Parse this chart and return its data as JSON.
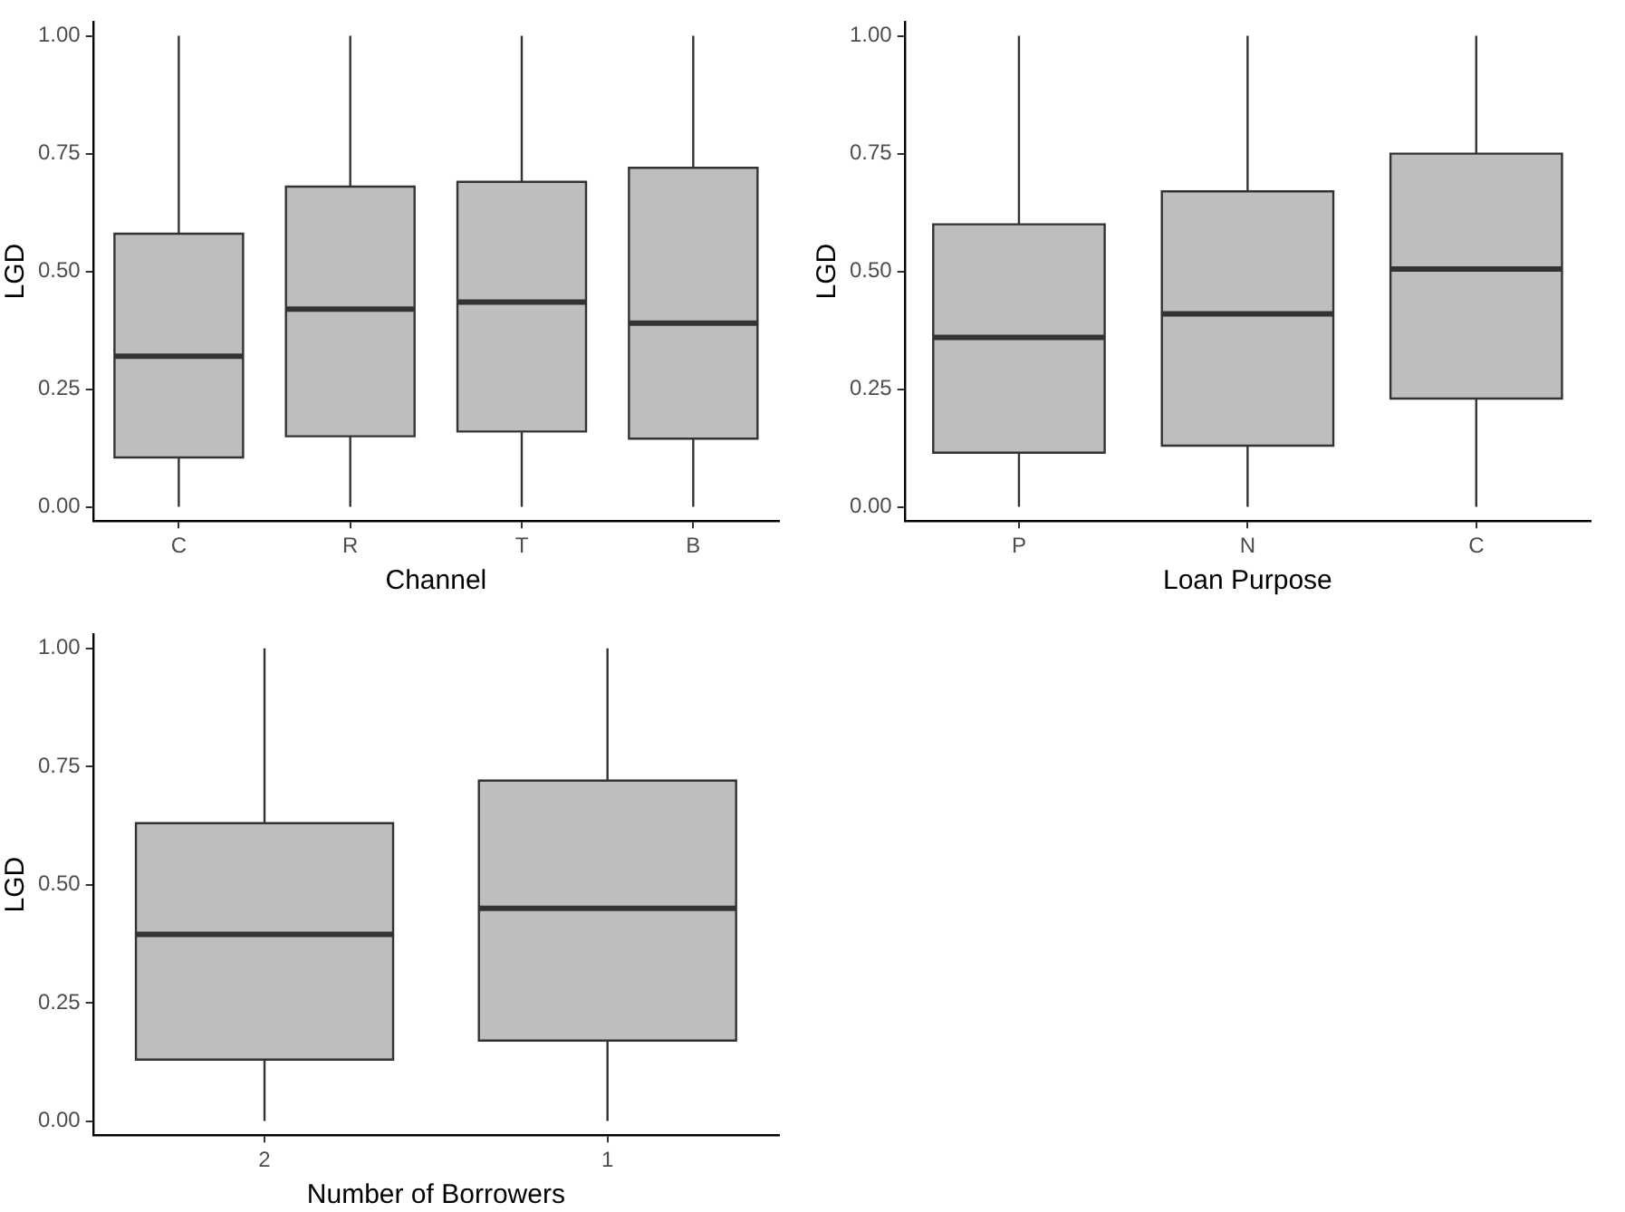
{
  "chart_data": [
    {
      "type": "box",
      "categories": [
        "C",
        "R",
        "T",
        "B"
      ],
      "xlabel": "Channel",
      "ylabel": "LGD",
      "color": "#bebebe",
      "ylim": [
        -0.03,
        1.03
      ],
      "yticks": [
        {
          "value": 0,
          "label": "0.00"
        },
        {
          "value": 0.25,
          "label": "0.25"
        },
        {
          "value": 0.5,
          "label": "0.50"
        },
        {
          "value": 0.75,
          "label": "0.75"
        },
        {
          "value": 1,
          "label": "1.00"
        }
      ],
      "boxes": [
        {
          "low": 0,
          "q1": 0.105,
          "median": 0.32,
          "q3": 0.58,
          "high": 1
        },
        {
          "low": 0,
          "q1": 0.15,
          "median": 0.42,
          "q3": 0.68,
          "high": 1
        },
        {
          "low": 0,
          "q1": 0.16,
          "median": 0.435,
          "q3": 0.69,
          "high": 1
        },
        {
          "low": 0,
          "q1": 0.145,
          "median": 0.39,
          "q3": 0.72,
          "high": 1
        }
      ]
    },
    {
      "type": "box",
      "categories": [
        "P",
        "N",
        "C"
      ],
      "xlabel": "Loan Purpose",
      "ylabel": "LGD",
      "color": "#bebebe",
      "ylim": [
        -0.03,
        1.03
      ],
      "yticks": [
        {
          "value": 0,
          "label": "0.00"
        },
        {
          "value": 0.25,
          "label": "0.25"
        },
        {
          "value": 0.5,
          "label": "0.50"
        },
        {
          "value": 0.75,
          "label": "0.75"
        },
        {
          "value": 1,
          "label": "1.00"
        }
      ],
      "boxes": [
        {
          "low": 0,
          "q1": 0.115,
          "median": 0.36,
          "q3": 0.6,
          "high": 1
        },
        {
          "low": 0,
          "q1": 0.13,
          "median": 0.41,
          "q3": 0.67,
          "high": 1
        },
        {
          "low": 0,
          "q1": 0.23,
          "median": 0.505,
          "q3": 0.75,
          "high": 1
        }
      ]
    },
    {
      "type": "box",
      "categories": [
        "2",
        "1"
      ],
      "xlabel": "Number of Borrowers",
      "ylabel": "LGD",
      "color": "#bebebe",
      "ylim": [
        -0.03,
        1.03
      ],
      "yticks": [
        {
          "value": 0,
          "label": "0.00"
        },
        {
          "value": 0.25,
          "label": "0.25"
        },
        {
          "value": 0.5,
          "label": "0.50"
        },
        {
          "value": 0.75,
          "label": "0.75"
        },
        {
          "value": 1,
          "label": "1.00"
        }
      ],
      "boxes": [
        {
          "low": 0,
          "q1": 0.13,
          "median": 0.395,
          "q3": 0.63,
          "high": 1
        },
        {
          "low": 0,
          "q1": 0.17,
          "median": 0.45,
          "q3": 0.72,
          "high": 1
        }
      ]
    }
  ]
}
